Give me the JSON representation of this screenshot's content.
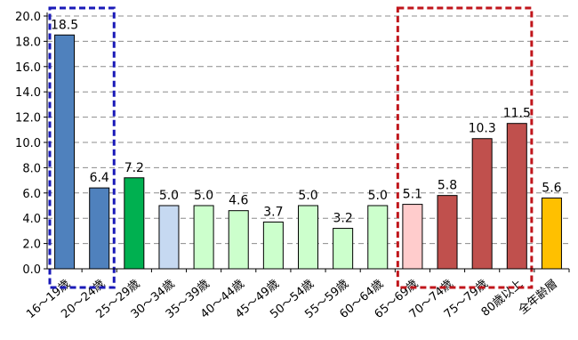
{
  "chart_data": {
    "type": "bar",
    "title": "",
    "xlabel": "",
    "ylabel": "",
    "ylim": [
      0,
      20
    ],
    "yticks": [
      "0.0",
      "2.0",
      "4.0",
      "6.0",
      "8.0",
      "10.0",
      "12.0",
      "14.0",
      "16.0",
      "18.0",
      "20.0"
    ],
    "grid": true,
    "categories": [
      "16～19歳",
      "20～24歳",
      "25～29歳",
      "30～34歳",
      "35～39歳",
      "40～44歳",
      "45～49歳",
      "50～54歳",
      "55～59歳",
      "60～64歳",
      "65～69歳",
      "70～74歳",
      "75～79歳",
      "80歳以上",
      "全年齢層"
    ],
    "values": [
      18.5,
      6.4,
      7.2,
      5.0,
      5.0,
      4.6,
      3.7,
      5.0,
      3.2,
      5.0,
      5.1,
      5.8,
      10.3,
      11.5,
      5.6
    ],
    "value_labels": [
      "18.5",
      "6.4",
      "7.2",
      "5.0",
      "5.0",
      "4.6",
      "3.7",
      "5.0",
      "3.2",
      "5.0",
      "5.1",
      "5.8",
      "10.3",
      "11.5",
      "5.6"
    ],
    "bar_colors": [
      "#4f81bd",
      "#4f81bd",
      "#00b050",
      "#c6d9f1",
      "#ccffcc",
      "#ccffcc",
      "#ccffcc",
      "#ccffcc",
      "#ccffcc",
      "#ccffcc",
      "#ffcccc",
      "#c0504d",
      "#c0504d",
      "#c0504d",
      "#ffc000"
    ],
    "highlight_groups": [
      {
        "color": "#1a1ab8",
        "from": 0,
        "to": 1
      },
      {
        "color": "#c0151b",
        "from": 10,
        "to": 13
      }
    ]
  }
}
